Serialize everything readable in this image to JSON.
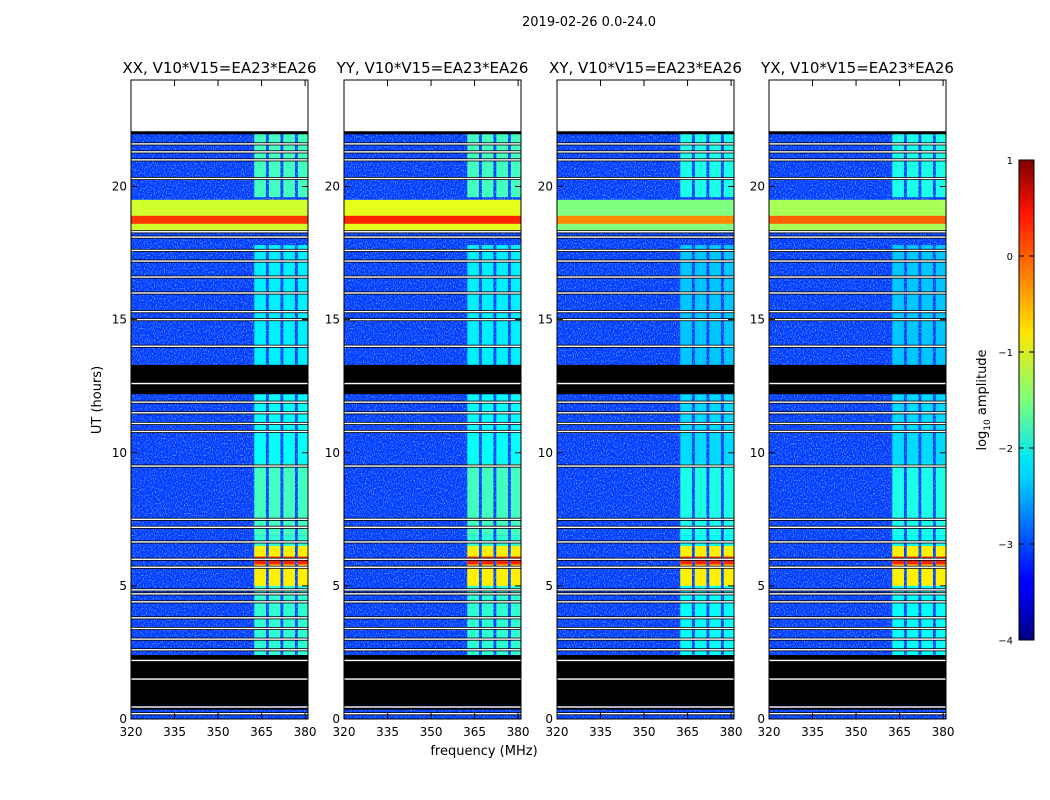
{
  "chart_data": {
    "type": "heatmap",
    "suptitle": "2019-02-26 0.0-24.0",
    "xlabel": "frequency (MHz)",
    "ylabel": "UT (hours)",
    "xlim": [
      320,
      381
    ],
    "ylim": [
      0,
      24
    ],
    "xticks": [
      320,
      335,
      350,
      365,
      380
    ],
    "yticks": [
      0,
      5,
      10,
      15,
      20
    ],
    "colorbar": {
      "label": "log",
      "label_sub": "10",
      "label_rest": " amplitude",
      "min": -4,
      "max": 1,
      "ticks": [
        1,
        0,
        -1,
        -2,
        -3,
        -4
      ],
      "tick_labels": [
        "1",
        "0",
        "−1",
        "−2",
        "−3",
        "−4"
      ],
      "colormap": "jet"
    },
    "panels": [
      {
        "title": "XX, V10*V15=EA23*EA26",
        "hot_band_ut": [
          18.3,
          19.5
        ],
        "hot_band_level": -0.3
      },
      {
        "title": "YY, V10*V15=EA23*EA26",
        "hot_band_ut": [
          18.3,
          19.5
        ],
        "hot_band_level": -0.2
      },
      {
        "title": "XY, V10*V15=EA23*EA26",
        "hot_band_ut": [
          18.3,
          19.5
        ],
        "hot_band_level": -0.7
      },
      {
        "title": "YX, V10*V15=EA23*EA26",
        "hot_band_ut": [
          18.3,
          19.5
        ],
        "hot_band_level": -0.5
      }
    ],
    "no_data_ut": [
      [
        0.35,
        0.55
      ],
      [
        0.55,
        2.4
      ],
      [
        12.2,
        13.3
      ],
      [
        22.0,
        24.0
      ]
    ],
    "flagged_line_ut": [
      0.2,
      0.45,
      1.5,
      2.2,
      2.6,
      3.0,
      3.4,
      3.8,
      4.4,
      4.7,
      4.85,
      5.7,
      6.0,
      6.65,
      7.2,
      7.5,
      9.5,
      10.8,
      11.1,
      11.5,
      11.9,
      12.6,
      14.0,
      15.0,
      15.3,
      16.0,
      16.6,
      17.2,
      17.6,
      18.1,
      18.3,
      20.3,
      21.0,
      21.3,
      21.6
    ],
    "channel_blocks_mhz": [
      [
        362.5,
        366.5
      ],
      [
        367.5,
        371.5
      ],
      [
        372.5,
        376.5
      ],
      [
        377.5,
        381.0
      ]
    ],
    "level_description": {
      "background": -3.1,
      "blocks": -2.0,
      "blocks_bright_5_6_ut": -0.8,
      "blocks_bright_19_ut": -0.6
    }
  }
}
